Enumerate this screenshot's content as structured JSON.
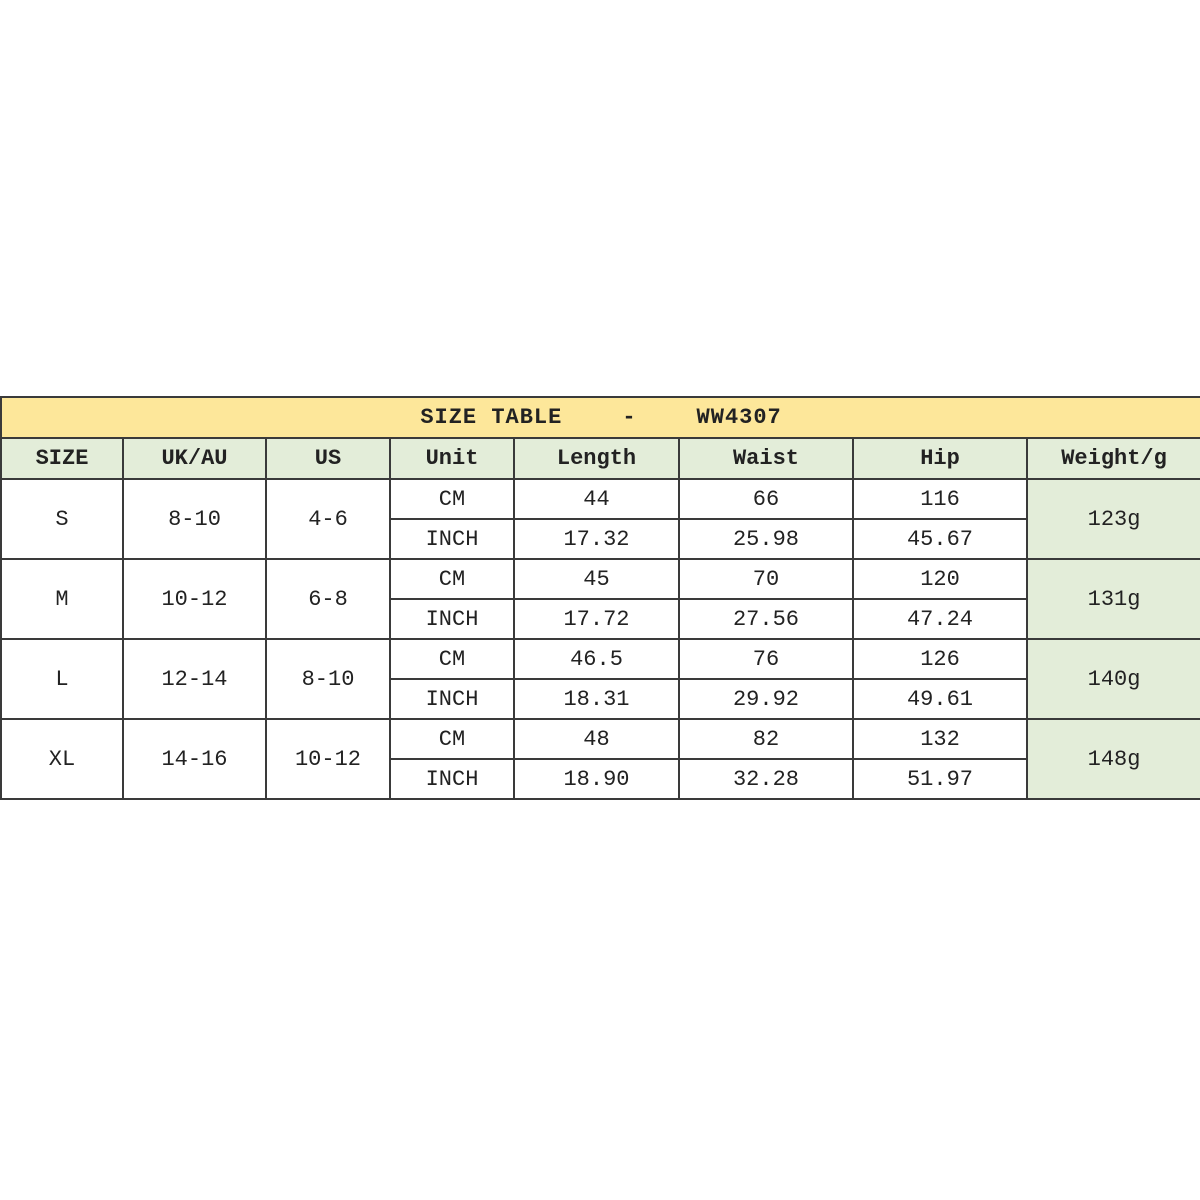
{
  "title": {
    "label": "SIZE TABLE",
    "separator": "-",
    "code": "WW4307"
  },
  "headers": [
    "SIZE",
    "UK/AU",
    "US",
    "Unit",
    "Length",
    "Waist",
    "Hip",
    "Weight/g"
  ],
  "colors": {
    "title_bg": "#fde79a",
    "header_bg": "#e3edd9",
    "weight_bg": "#e3edd9",
    "border": "#3a3a3a"
  },
  "rows": [
    {
      "size": "S",
      "uk_au": "8-10",
      "us": "4-6",
      "weight": "123g",
      "cm": {
        "unit": "CM",
        "length": "44",
        "waist": "66",
        "hip": "116"
      },
      "inch": {
        "unit": "INCH",
        "length": "17.32",
        "waist": "25.98",
        "hip": "45.67"
      }
    },
    {
      "size": "M",
      "uk_au": "10-12",
      "us": "6-8",
      "weight": "131g",
      "cm": {
        "unit": "CM",
        "length": "45",
        "waist": "70",
        "hip": "120"
      },
      "inch": {
        "unit": "INCH",
        "length": "17.72",
        "waist": "27.56",
        "hip": "47.24"
      }
    },
    {
      "size": "L",
      "uk_au": "12-14",
      "us": "8-10",
      "weight": "140g",
      "cm": {
        "unit": "CM",
        "length": "46.5",
        "waist": "76",
        "hip": "126"
      },
      "inch": {
        "unit": "INCH",
        "length": "18.31",
        "waist": "29.92",
        "hip": "49.61"
      }
    },
    {
      "size": "XL",
      "uk_au": "14-16",
      "us": "10-12",
      "weight": "148g",
      "cm": {
        "unit": "CM",
        "length": "48",
        "waist": "82",
        "hip": "132"
      },
      "inch": {
        "unit": "INCH",
        "length": "18.90",
        "waist": "32.28",
        "hip": "51.97"
      }
    }
  ]
}
